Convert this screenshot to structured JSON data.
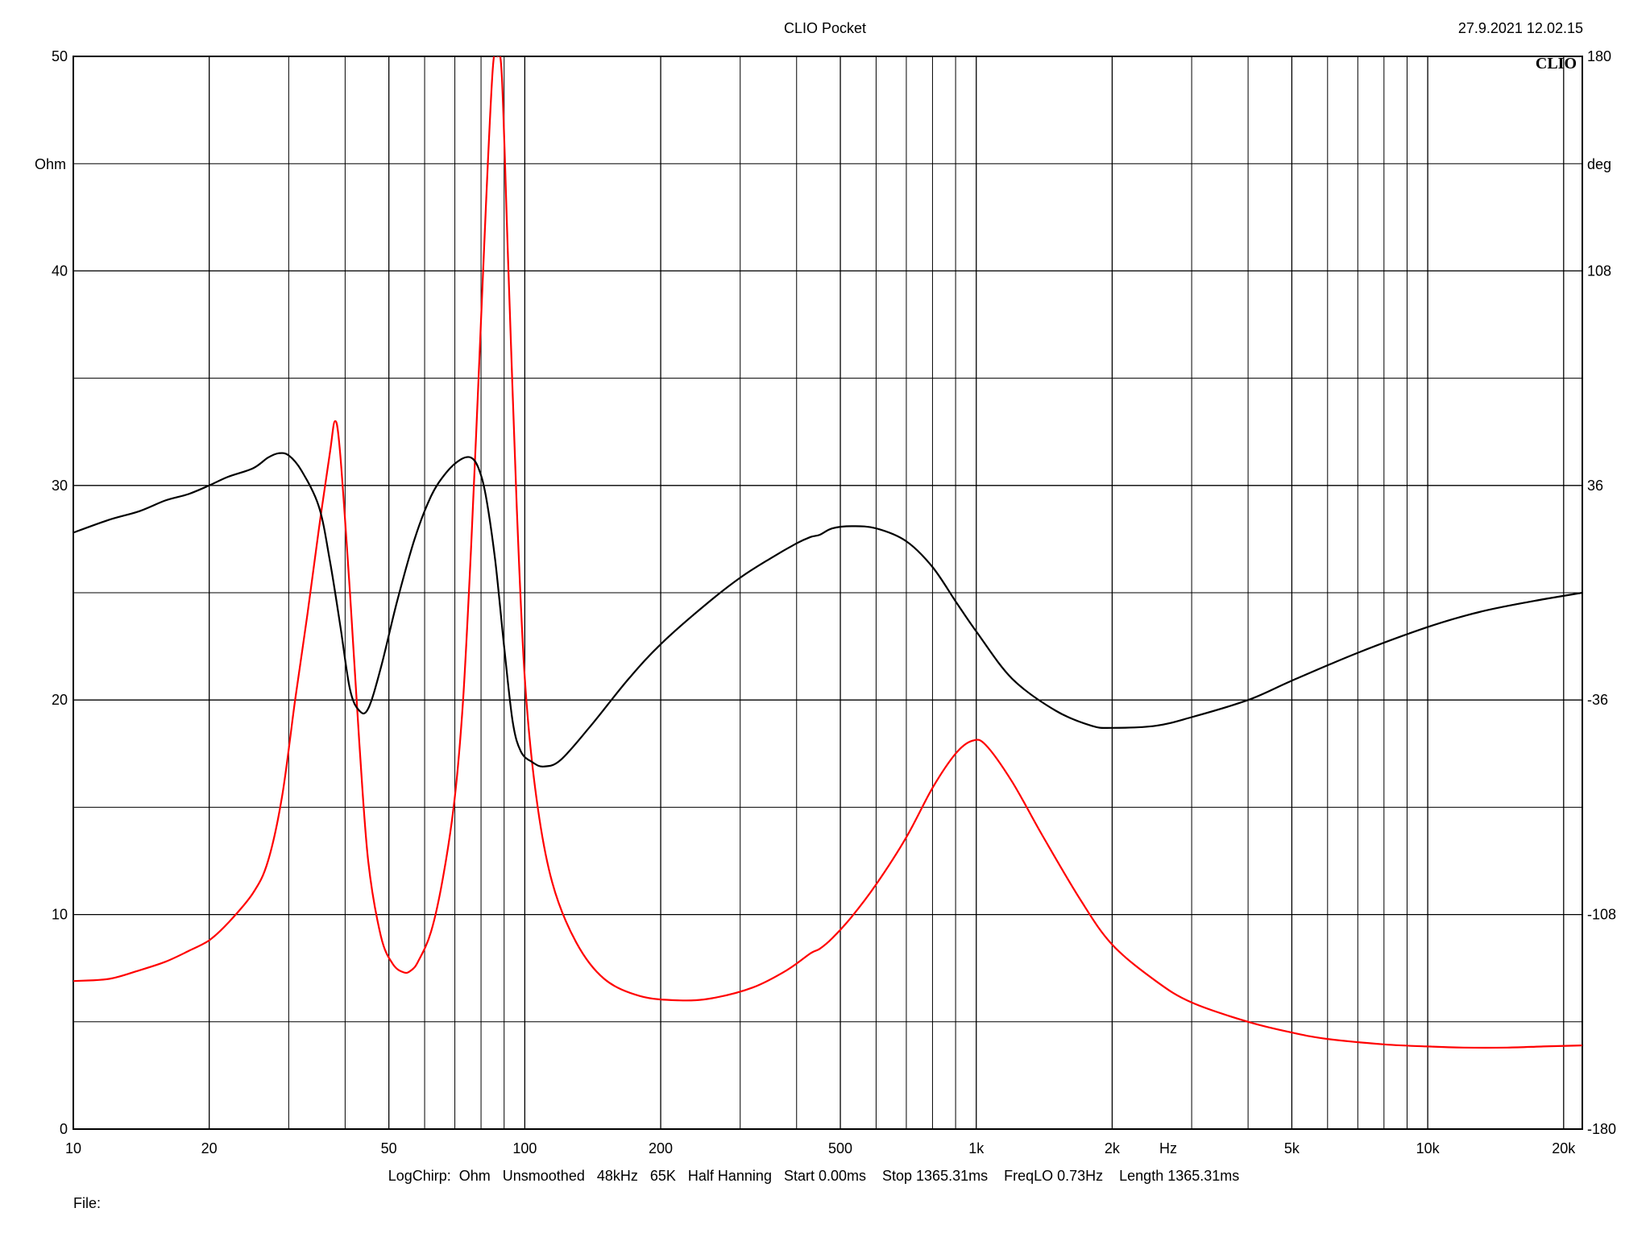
{
  "header": {
    "title": "CLIO Pocket",
    "timestamp": "27.9.2021 12.02.15",
    "logo": "CLIO"
  },
  "footer": {
    "settings": "LogChirp:  Ohm   Unsmoothed   48kHz   65K   Half Hanning   Start 0.00ms    Stop 1365.31ms    FreqLO 0.73Hz    Length 1365.31ms",
    "file_label": "File:"
  },
  "chart_data": {
    "type": "line",
    "x_scale": "log",
    "xlim": [
      10,
      22000
    ],
    "ylim": [
      0,
      50
    ],
    "y2lim": [
      -180,
      180
    ],
    "ylabel": "Ohm",
    "y2label": "deg",
    "xunit": "Hz",
    "grid": true,
    "x_tick_labels": [
      {
        "value": 10,
        "label": "10"
      },
      {
        "value": 20,
        "label": "20"
      },
      {
        "value": 50,
        "label": "50"
      },
      {
        "value": 100,
        "label": "100"
      },
      {
        "value": 200,
        "label": "200"
      },
      {
        "value": 500,
        "label": "500"
      },
      {
        "value": 1000,
        "label": "1k"
      },
      {
        "value": 2000,
        "label": "2k"
      },
      {
        "value": 5000,
        "label": "5k"
      },
      {
        "value": 10000,
        "label": "10k"
      },
      {
        "value": 20000,
        "label": "20k"
      }
    ],
    "x_minor_ticks": [
      30,
      40,
      60,
      70,
      80,
      90,
      300,
      400,
      600,
      700,
      800,
      900,
      3000,
      4000,
      6000,
      7000,
      8000,
      9000
    ],
    "y_tick_labels": [
      {
        "value": 0,
        "label": "0"
      },
      {
        "value": 10,
        "label": "10"
      },
      {
        "value": 20,
        "label": "20"
      },
      {
        "value": 30,
        "label": "30"
      },
      {
        "value": 40,
        "label": "40"
      },
      {
        "value": 50,
        "label": "50"
      }
    ],
    "y_minor_ticks": [
      5,
      15,
      25,
      35,
      45
    ],
    "y2_tick_labels": [
      {
        "value": -180,
        "label": "-180"
      },
      {
        "value": -108,
        "label": "-108"
      },
      {
        "value": -36,
        "label": "-36"
      },
      {
        "value": 36,
        "label": "36"
      },
      {
        "value": 108,
        "label": "108"
      },
      {
        "value": 180,
        "label": "180"
      }
    ],
    "series": [
      {
        "color": "#ff0000",
        "axis": "left",
        "points": [
          [
            10,
            6.9
          ],
          [
            12,
            7.0
          ],
          [
            14,
            7.4
          ],
          [
            16,
            7.8
          ],
          [
            18,
            8.3
          ],
          [
            20,
            8.8
          ],
          [
            22,
            9.6
          ],
          [
            25,
            11.0
          ],
          [
            27,
            12.5
          ],
          [
            29,
            15.5
          ],
          [
            31,
            20.0
          ],
          [
            33,
            24.0
          ],
          [
            35,
            28.0
          ],
          [
            37,
            31.5
          ],
          [
            38,
            33.0
          ],
          [
            39,
            31.5
          ],
          [
            41,
            25.0
          ],
          [
            43,
            18.0
          ],
          [
            45,
            12.5
          ],
          [
            48,
            9.0
          ],
          [
            51,
            7.7
          ],
          [
            54,
            7.3
          ],
          [
            56,
            7.4
          ],
          [
            58,
            7.8
          ],
          [
            62,
            9.2
          ],
          [
            66,
            11.8
          ],
          [
            70,
            15.5
          ],
          [
            73,
            20.0
          ],
          [
            76,
            27.0
          ],
          [
            79,
            35.0
          ],
          [
            82,
            43.0
          ],
          [
            85,
            49.5
          ],
          [
            87,
            50.0
          ],
          [
            89,
            49.0
          ],
          [
            92,
            40.0
          ],
          [
            96,
            29.0
          ],
          [
            100,
            21.0
          ],
          [
            106,
            15.5
          ],
          [
            115,
            11.5
          ],
          [
            130,
            8.7
          ],
          [
            150,
            7.0
          ],
          [
            180,
            6.2
          ],
          [
            220,
            6.0
          ],
          [
            260,
            6.1
          ],
          [
            320,
            6.6
          ],
          [
            380,
            7.4
          ],
          [
            430,
            8.2
          ],
          [
            450,
            8.4
          ],
          [
            480,
            8.9
          ],
          [
            530,
            9.9
          ],
          [
            600,
            11.4
          ],
          [
            700,
            13.6
          ],
          [
            800,
            15.9
          ],
          [
            900,
            17.5
          ],
          [
            980,
            18.1
          ],
          [
            1050,
            17.9
          ],
          [
            1200,
            16.2
          ],
          [
            1400,
            13.7
          ],
          [
            1700,
            10.7
          ],
          [
            2000,
            8.6
          ],
          [
            2500,
            6.9
          ],
          [
            3000,
            5.9
          ],
          [
            4000,
            5.0
          ],
          [
            5000,
            4.5
          ],
          [
            6000,
            4.2
          ],
          [
            8000,
            3.95
          ],
          [
            10000,
            3.85
          ],
          [
            12000,
            3.8
          ],
          [
            15000,
            3.8
          ],
          [
            18000,
            3.85
          ],
          [
            22000,
            3.9
          ]
        ]
      },
      {
        "color": "#000000",
        "axis": "left",
        "points": [
          [
            10,
            27.8
          ],
          [
            12,
            28.4
          ],
          [
            14,
            28.8
          ],
          [
            16,
            29.3
          ],
          [
            18,
            29.6
          ],
          [
            20,
            30.0
          ],
          [
            22,
            30.4
          ],
          [
            25,
            30.8
          ],
          [
            27,
            31.3
          ],
          [
            28.5,
            31.5
          ],
          [
            30,
            31.4
          ],
          [
            32,
            30.7
          ],
          [
            35,
            29.0
          ],
          [
            37,
            26.5
          ],
          [
            39,
            23.5
          ],
          [
            41,
            20.5
          ],
          [
            43,
            19.5
          ],
          [
            45,
            19.6
          ],
          [
            48,
            21.5
          ],
          [
            52,
            24.5
          ],
          [
            57,
            27.5
          ],
          [
            62,
            29.5
          ],
          [
            67,
            30.6
          ],
          [
            72,
            31.2
          ],
          [
            76,
            31.3
          ],
          [
            79,
            30.8
          ],
          [
            82,
            29.5
          ],
          [
            86,
            26.5
          ],
          [
            90,
            22.5
          ],
          [
            94,
            19.0
          ],
          [
            98,
            17.6
          ],
          [
            104,
            17.1
          ],
          [
            110,
            16.9
          ],
          [
            120,
            17.2
          ],
          [
            140,
            18.8
          ],
          [
            170,
            21.0
          ],
          [
            200,
            22.6
          ],
          [
            250,
            24.4
          ],
          [
            300,
            25.7
          ],
          [
            350,
            26.6
          ],
          [
            400,
            27.3
          ],
          [
            430,
            27.6
          ],
          [
            450,
            27.7
          ],
          [
            480,
            28.0
          ],
          [
            530,
            28.1
          ],
          [
            600,
            28.0
          ],
          [
            700,
            27.4
          ],
          [
            800,
            26.2
          ],
          [
            900,
            24.6
          ],
          [
            1000,
            23.2
          ],
          [
            1200,
            21.0
          ],
          [
            1500,
            19.5
          ],
          [
            1800,
            18.8
          ],
          [
            2000,
            18.7
          ],
          [
            2500,
            18.8
          ],
          [
            3000,
            19.2
          ],
          [
            4000,
            20.0
          ],
          [
            5000,
            20.9
          ],
          [
            7000,
            22.2
          ],
          [
            10000,
            23.4
          ],
          [
            13000,
            24.1
          ],
          [
            17000,
            24.6
          ],
          [
            22000,
            25.0
          ]
        ]
      }
    ]
  }
}
